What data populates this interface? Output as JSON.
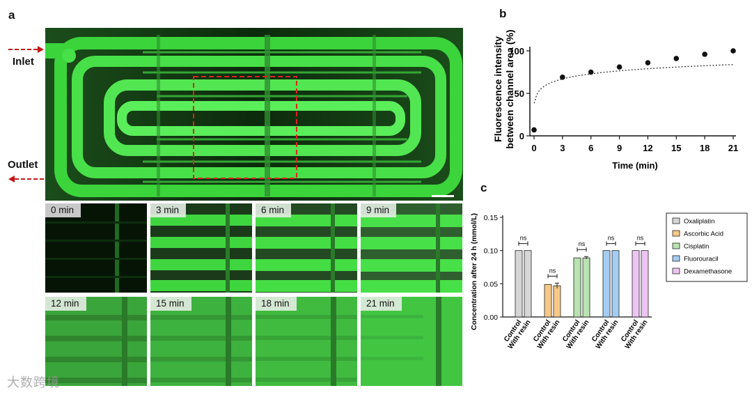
{
  "panels": {
    "a": "a",
    "b": "b",
    "c": "c"
  },
  "panel_a": {
    "inlet_label": "Inlet",
    "outlet_label": "Outlet",
    "time_points": [
      "0 min",
      "3  min",
      "6 min",
      "9 min",
      "12 min",
      "15 min",
      "18 min",
      "21 min"
    ]
  },
  "watermark": "大数跨境",
  "chart_data": [
    {
      "type": "scatter",
      "id": "b",
      "x": [
        0,
        3,
        6,
        9,
        12,
        15,
        18,
        21
      ],
      "y": [
        7,
        69,
        75,
        81,
        86,
        91,
        96,
        100
      ],
      "fit_line": "dotted",
      "xlabel": "Time (min)",
      "ylabel": "Fluorescence intensity between channel area (%)",
      "ylabel_lines": [
        "Fluorescence intensity",
        "between channel area (%)"
      ],
      "xticks": [
        "0",
        "3",
        "6",
        "9",
        "12",
        "15",
        "18",
        "21"
      ],
      "yticks": [
        "0",
        "50",
        "100"
      ],
      "xlim": [
        0,
        21
      ],
      "ylim": [
        0,
        100
      ]
    },
    {
      "type": "bar",
      "id": "c",
      "ylabel": "Concentration after 24 h  (mmol/L)",
      "ylim": [
        0,
        0.15
      ],
      "yticks": [
        "0.00",
        "0.05",
        "0.10",
        "0.15"
      ],
      "group_labels": [
        "Control",
        "With resin"
      ],
      "significance": "ns",
      "legend_position": "top-right",
      "series": [
        {
          "name": "Oxaliplatin",
          "color": "#d6d6d6",
          "values": [
            0.1,
            0.1
          ],
          "errors": [
            0.0,
            0.0
          ]
        },
        {
          "name": "Ascorbic Acid",
          "color": "#f7c987",
          "values": [
            0.049,
            0.047
          ],
          "errors": [
            0.0,
            0.004
          ]
        },
        {
          "name": "Cisplatin",
          "color": "#b9e3b0",
          "values": [
            0.089,
            0.089
          ],
          "errors": [
            0.0,
            0.002
          ]
        },
        {
          "name": "Fluorouracil",
          "color": "#a5cdf2",
          "values": [
            0.1,
            0.1
          ],
          "errors": [
            0.0,
            0.0
          ]
        },
        {
          "name": "Dexamethasone",
          "color": "#edc5f2",
          "values": [
            0.1,
            0.1
          ],
          "errors": [
            0.0,
            0.0
          ]
        }
      ]
    }
  ]
}
